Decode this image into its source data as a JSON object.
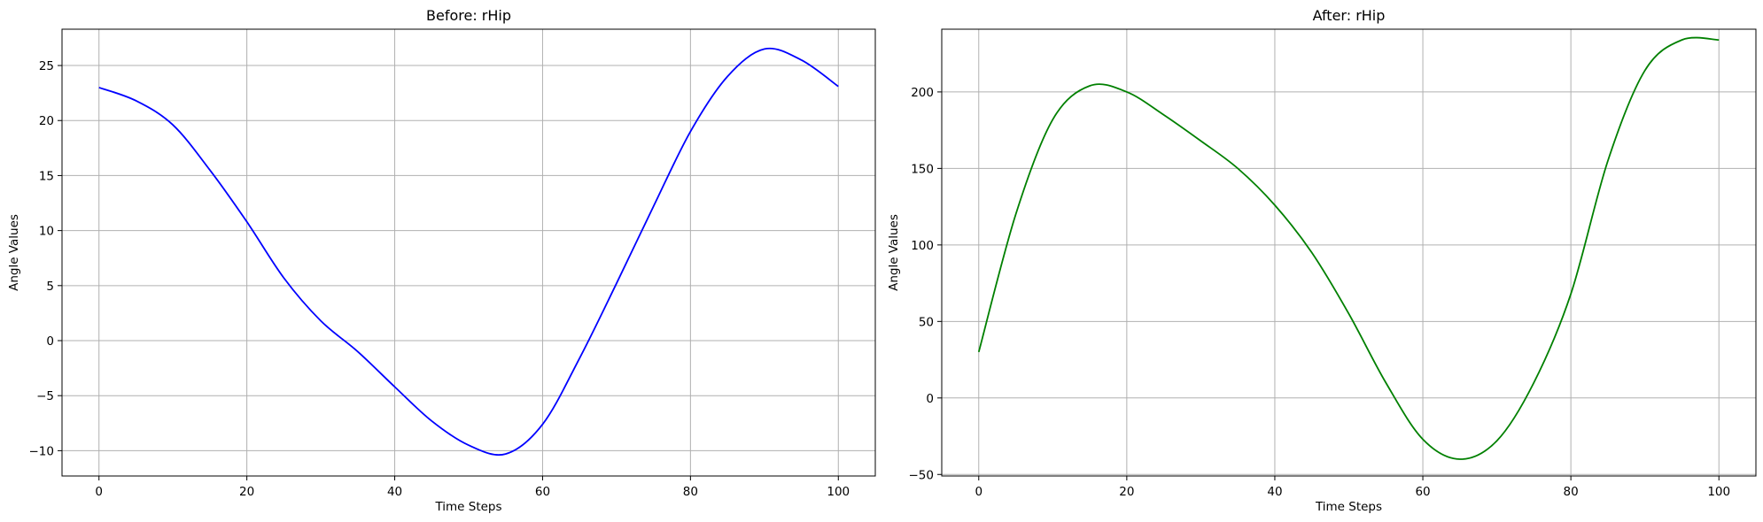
{
  "chart_data": [
    {
      "type": "line",
      "title": "Before: rHip",
      "xlabel": "Time Steps",
      "ylabel": "Angle Values",
      "xlim": [
        -5,
        105
      ],
      "ylim": [
        -12.3,
        28.3
      ],
      "xticks": [
        0,
        20,
        40,
        60,
        80,
        100
      ],
      "yticks": [
        -10,
        -5,
        0,
        5,
        10,
        15,
        20,
        25
      ],
      "grid": true,
      "series": [
        {
          "color": "#0000ff",
          "x": [
            0,
            5,
            10,
            15,
            20,
            25,
            30,
            35,
            40,
            45,
            50,
            55,
            60,
            65,
            70,
            75,
            80,
            85,
            90,
            95,
            100
          ],
          "y": [
            23.0,
            21.8,
            19.6,
            15.5,
            10.8,
            5.7,
            1.8,
            -1.0,
            -4.2,
            -7.3,
            -9.5,
            -10.3,
            -7.6,
            -1.6,
            5.2,
            12.2,
            19.0,
            24.0,
            26.5,
            25.5,
            23.1
          ]
        }
      ]
    },
    {
      "type": "line",
      "title": "After: rHip",
      "xlabel": "Time Steps",
      "ylabel": "Angle Values",
      "xlim": [
        -5,
        105
      ],
      "ylim": [
        -51,
        241
      ],
      "xticks": [
        0,
        20,
        40,
        60,
        80,
        100
      ],
      "yticks": [
        -50,
        0,
        50,
        100,
        150,
        200
      ],
      "grid": true,
      "series": [
        {
          "color": "#008000",
          "x": [
            0,
            5,
            10,
            15,
            20,
            25,
            30,
            35,
            40,
            45,
            50,
            55,
            60,
            65,
            70,
            75,
            80,
            85,
            90,
            95,
            100
          ],
          "y": [
            30,
            120,
            182,
            204,
            200,
            185,
            168,
            150,
            126,
            95,
            55,
            10,
            -27,
            -40,
            -28,
            10,
            68,
            155,
            214,
            234,
            234
          ]
        }
      ]
    }
  ]
}
